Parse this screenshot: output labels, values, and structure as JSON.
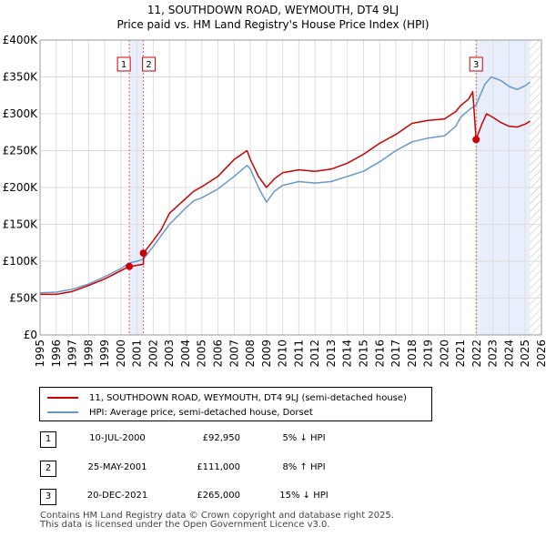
{
  "title": {
    "line1": "11, SOUTHDOWN ROAD, WEYMOUTH, DT4 9LJ",
    "line2": "Price paid vs. HM Land Registry's House Price Index (HPI)"
  },
  "legend": {
    "items": [
      {
        "label": "11, SOUTHDOWN ROAD, WEYMOUTH, DT4 9LJ (semi-detached house)",
        "color": "#cc0000"
      },
      {
        "label": "HPI: Average price, semi-detached house, Dorset",
        "color": "#6699cc"
      }
    ]
  },
  "transactions": [
    {
      "num": "1",
      "date": "10-JUL-2000",
      "price": "£92,950",
      "hpi": "5% ↓ HPI"
    },
    {
      "num": "2",
      "date": "25-MAY-2001",
      "price": "£111,000",
      "hpi": "8% ↑ HPI"
    },
    {
      "num": "3",
      "date": "20-DEC-2021",
      "price": "£265,000",
      "hpi": "15% ↓ HPI"
    }
  ],
  "footer": {
    "line1": "Contains HM Land Registry data © Crown copyright and database right 2025.",
    "line2": "This data is licensed under the Open Government Licence v3.0."
  },
  "chart_data": {
    "type": "line",
    "title": "11, SOUTHDOWN ROAD, WEYMOUTH, DT4 9LJ — Price paid vs. HM Land Registry's House Price Index (HPI)",
    "xlabel": "",
    "ylabel": "",
    "xlim": [
      1995,
      2026
    ],
    "ylim": [
      0,
      400000
    ],
    "x_ticks": [
      "1995",
      "1996",
      "1997",
      "1998",
      "1999",
      "2000",
      "2001",
      "2002",
      "2003",
      "2004",
      "2005",
      "2006",
      "2007",
      "2008",
      "2009",
      "2010",
      "2011",
      "2012",
      "2013",
      "2014",
      "2015",
      "2016",
      "2017",
      "2018",
      "2019",
      "2020",
      "2021",
      "2022",
      "2023",
      "2024",
      "2025",
      "2026"
    ],
    "y_ticks": [
      {
        "value": 0,
        "label": "£0"
      },
      {
        "value": 50000,
        "label": "£50K"
      },
      {
        "value": 100000,
        "label": "£100K"
      },
      {
        "value": 150000,
        "label": "£150K"
      },
      {
        "value": 200000,
        "label": "£200K"
      },
      {
        "value": 250000,
        "label": "£250K"
      },
      {
        "value": 300000,
        "label": "£300K"
      },
      {
        "value": 350000,
        "label": "£350K"
      },
      {
        "value": 400000,
        "label": "£400K"
      }
    ],
    "grid": true,
    "series": [
      {
        "name": "11, SOUTHDOWN ROAD, WEYMOUTH, DT4 9LJ (semi-detached house)",
        "color": "#cc0000",
        "points": [
          [
            1995,
            55000
          ],
          [
            1996,
            55000
          ],
          [
            1997,
            59000
          ],
          [
            1998,
            67000
          ],
          [
            1999,
            76000
          ],
          [
            2000.52,
            92950
          ],
          [
            2000.6,
            93000
          ],
          [
            2001.39,
            96000
          ],
          [
            2001.4,
            111000
          ],
          [
            2002,
            128000
          ],
          [
            2002.5,
            143000
          ],
          [
            2003,
            165000
          ],
          [
            2004,
            185000
          ],
          [
            2004.5,
            195000
          ],
          [
            2005,
            201000
          ],
          [
            2006,
            215000
          ],
          [
            2007,
            238000
          ],
          [
            2007.8,
            250000
          ],
          [
            2008,
            238000
          ],
          [
            2008.5,
            215000
          ],
          [
            2009,
            200000
          ],
          [
            2009.5,
            212000
          ],
          [
            2010,
            220000
          ],
          [
            2011,
            224000
          ],
          [
            2012,
            222000
          ],
          [
            2013,
            225000
          ],
          [
            2014,
            233000
          ],
          [
            2015,
            245000
          ],
          [
            2016,
            260000
          ],
          [
            2017,
            272000
          ],
          [
            2018,
            287000
          ],
          [
            2019,
            291000
          ],
          [
            2020,
            293000
          ],
          [
            2020.7,
            303000
          ],
          [
            2021,
            311000
          ],
          [
            2021.5,
            320000
          ],
          [
            2021.75,
            330000
          ],
          [
            2021.96,
            265000
          ],
          [
            2022.3,
            285000
          ],
          [
            2022.6,
            300000
          ],
          [
            2023,
            295000
          ],
          [
            2023.5,
            288000
          ],
          [
            2024,
            283000
          ],
          [
            2024.5,
            282000
          ],
          [
            2025,
            286000
          ],
          [
            2025.3,
            290000
          ]
        ]
      },
      {
        "name": "HPI: Average price, semi-detached house, Dorset",
        "color": "#6699cc",
        "points": [
          [
            1995,
            57000
          ],
          [
            1996,
            58000
          ],
          [
            1997,
            62000
          ],
          [
            1998,
            69000
          ],
          [
            1999,
            79000
          ],
          [
            2000,
            90000
          ],
          [
            2000.52,
            97800
          ],
          [
            2001,
            100000
          ],
          [
            2001.39,
            102800
          ],
          [
            2002,
            120000
          ],
          [
            2003,
            150000
          ],
          [
            2004,
            172000
          ],
          [
            2004.5,
            182000
          ],
          [
            2005,
            186000
          ],
          [
            2006,
            198000
          ],
          [
            2007,
            215000
          ],
          [
            2007.8,
            230000
          ],
          [
            2008,
            225000
          ],
          [
            2008.5,
            200000
          ],
          [
            2009,
            180000
          ],
          [
            2009.5,
            195000
          ],
          [
            2010,
            203000
          ],
          [
            2011,
            208000
          ],
          [
            2012,
            206000
          ],
          [
            2013,
            208000
          ],
          [
            2014,
            215000
          ],
          [
            2015,
            222000
          ],
          [
            2016,
            235000
          ],
          [
            2017,
            250000
          ],
          [
            2018,
            262000
          ],
          [
            2019,
            267000
          ],
          [
            2020,
            270000
          ],
          [
            2020.7,
            283000
          ],
          [
            2021,
            295000
          ],
          [
            2021.5,
            305000
          ],
          [
            2021.96,
            312000
          ],
          [
            2022.5,
            340000
          ],
          [
            2022.9,
            350000
          ],
          [
            2023.5,
            345000
          ],
          [
            2024,
            337000
          ],
          [
            2024.5,
            333000
          ],
          [
            2025,
            338000
          ],
          [
            2025.3,
            343000
          ]
        ]
      }
    ],
    "transactions": [
      {
        "label": "1",
        "x": 2000.52,
        "price": 92950
      },
      {
        "label": "2",
        "x": 2001.39,
        "price": 111000
      },
      {
        "label": "3",
        "x": 2021.96,
        "price": 265000
      }
    ],
    "shaded_periods": [
      {
        "from": 2000.52,
        "to": 2001.39
      },
      {
        "from": 2021.96,
        "to": 2025.3
      }
    ],
    "hatched_region": {
      "from": 2025.3,
      "to": 2026
    }
  }
}
